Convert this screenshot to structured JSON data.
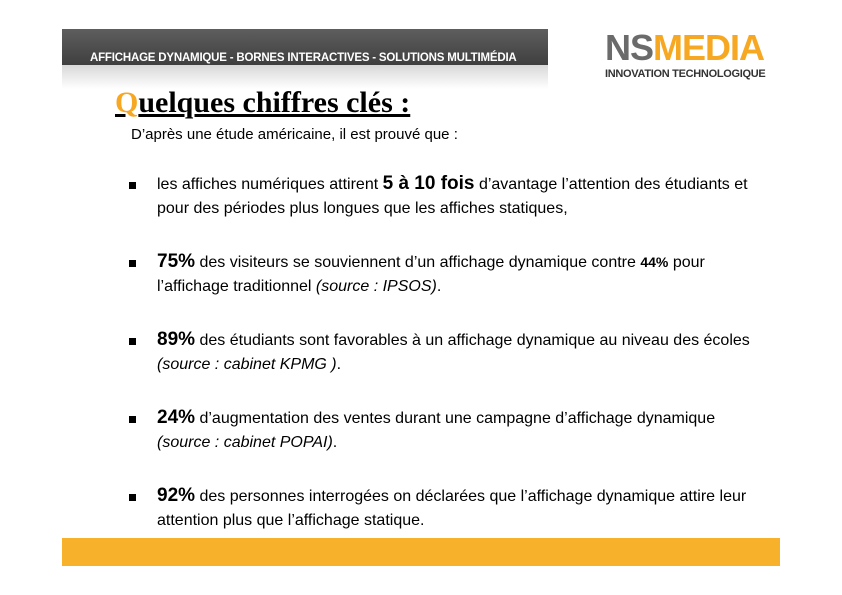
{
  "header": {
    "banner_text": "AFFICHAGE DYNAMIQUE - BORNES INTERACTIVES - SOLUTIONS MULTIMÉDIA",
    "logo": {
      "part1": "NS",
      "part2": "MEDIA",
      "tagline": "INNOVATION TECHNOLOGIQUE"
    }
  },
  "title": {
    "first_letter": "Q",
    "rest": "uelques chiffres clés :"
  },
  "intro": "D’après une étude américaine, il est prouvé que :",
  "bullets": [
    {
      "pre": " les affiches numériques attirent ",
      "highlight": "5 à 10 fois",
      "text": " d’avantage l’attention des étudiants et pour des périodes plus longues que les affiches statiques,"
    },
    {
      "highlight": "75%",
      "text": " des visiteurs se souviennent d’un affichage dynamique contre ",
      "highlight2": "44%",
      "text2": " pour l’affichage traditionnel ",
      "source": "(source : IPSOS)",
      "end": "."
    },
    {
      "highlight": "89%",
      "text": " des étudiants sont favorables à un affichage dynamique au niveau des écoles ",
      "source": "(source : cabinet KPMG )",
      "end": "."
    },
    {
      "highlight": "24%",
      "text": " d’augmentation des ventes durant une campagne d’affichage dynamique ",
      "source": "(source : cabinet POPAI)",
      "end": "."
    },
    {
      "highlight": "92%",
      "text": " des personnes interrogées on déclarées que l’affichage dynamique attire leur attention plus que l’affichage statique."
    }
  ],
  "colors": {
    "accent": "#f7a823",
    "band": "#4a4a4a",
    "footer": "#f7b12a"
  }
}
